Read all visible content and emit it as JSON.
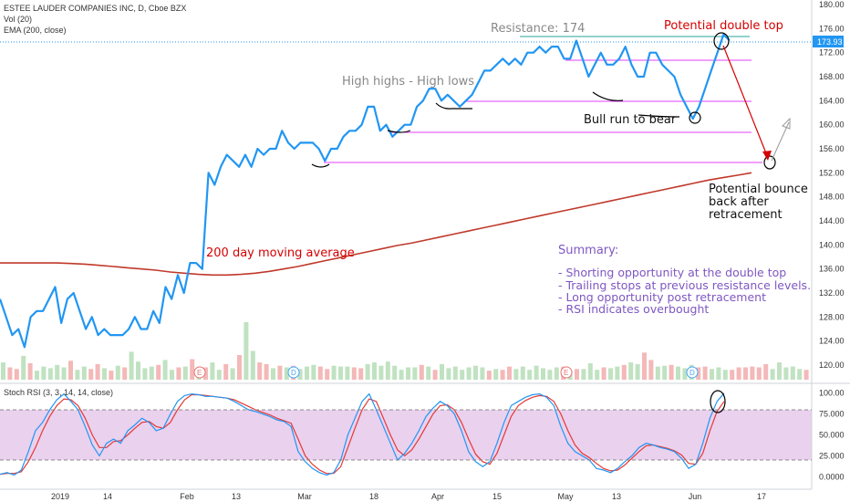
{
  "legend": {
    "symbol_line": "ESTEE LAUDER COMPANIES INC, D, Cboe BZX",
    "vol_line": "Vol (20)",
    "ema_line": "EMA (200, close)",
    "stoch_line": "Stoch RSI (3, 3, 14, 14, close)"
  },
  "price_badge": "173.93",
  "colors": {
    "price": "#2196f3",
    "ema": "#c0392b",
    "stoch_k": "#2196f3",
    "stoch_d": "#e53935",
    "support_lines": "#e040fb",
    "rsi_band": "#e1bee7",
    "annotation_purple": "#7e57c2",
    "annotation_red": "#d50000",
    "annotation_gray": "#888888"
  },
  "annotations": {
    "resistance": "Resistance: 174",
    "double_top": "Potential double top",
    "high_highs": "High highs - High lows",
    "bull_run": "Bull run to bear",
    "bounce_1": "Potential bounce",
    "bounce_2": "back after",
    "bounce_3": "retracement",
    "ma200": "200 day moving average",
    "summary_title": "Summary:",
    "summary_1": "- Shorting opportunity at the double top",
    "summary_2": "- Trailing stops at previous resistance levels.",
    "summary_3": "- Long opportunity post retracement",
    "summary_4": "- RSI indicates overbought"
  },
  "chart_data": [
    {
      "type": "line",
      "title": "ESTEE LAUDER COMPANIES INC, D, Cboe BZX",
      "ylim": [
        116,
        181
      ],
      "y_ticks": [
        "120.00",
        "124.00",
        "128.00",
        "132.00",
        "136.00",
        "140.00",
        "144.00",
        "148.00",
        "152.00",
        "156.00",
        "160.00",
        "164.00",
        "168.00",
        "172.00",
        "176.00",
        "180.00"
      ],
      "x_tick_labels": [
        "2019",
        "14",
        "Feb",
        "13",
        "Mar",
        "18",
        "Apr",
        "15",
        "May",
        "13",
        "Jun",
        "17"
      ],
      "series": [
        {
          "name": "Price",
          "values": [
            131,
            128,
            125,
            126,
            123,
            128,
            129,
            129,
            131,
            133,
            127,
            131,
            132,
            129,
            126,
            128,
            125,
            126,
            125,
            125,
            125,
            126,
            128,
            126,
            126,
            129,
            127,
            133,
            131,
            135,
            132,
            137,
            137,
            136,
            152,
            150,
            153,
            155,
            154,
            153,
            155,
            153,
            156,
            155,
            156,
            156,
            159,
            157,
            156,
            157,
            157,
            157,
            156,
            154,
            156,
            156,
            158,
            159,
            159,
            160,
            163,
            163,
            159,
            160,
            158,
            159,
            160,
            160,
            163,
            164,
            166,
            166,
            164,
            165,
            164,
            163,
            164,
            165,
            167,
            169,
            169,
            170,
            171,
            170,
            171,
            170,
            172,
            172,
            173,
            172,
            173,
            173,
            171,
            171,
            174,
            171,
            168,
            170,
            172,
            170,
            170,
            171,
            173,
            170,
            168,
            168,
            172,
            172,
            170,
            169,
            168,
            165,
            163,
            161,
            163,
            166,
            169,
            172,
            175,
            174
          ]
        },
        {
          "name": "EMA (200, close)",
          "values": [
            137,
            137,
            137,
            137,
            137,
            136.9,
            136.8,
            136.6,
            136.4,
            136.2,
            136,
            135.8,
            135.5,
            135.3,
            135.1,
            135,
            135,
            135.1,
            135.3,
            135.6,
            136,
            136.4,
            136.9,
            137.4,
            137.9,
            138.4,
            138.9,
            139.4,
            139.9,
            140.3,
            140.8,
            141.3,
            141.8,
            142.3,
            142.8,
            143.3,
            143.8,
            144.3,
            144.8,
            145.3,
            145.8,
            146.3,
            146.8,
            147.3,
            147.8,
            148.3,
            148.8,
            149.3,
            149.8,
            150.3,
            150.8,
            151.2,
            151.6,
            152
          ]
        },
        {
          "name": "Volume",
          "values": [
            2.1,
            1.5,
            1.3,
            2.9,
            2,
            1.1,
            1.6,
            1.4,
            1.8,
            1.5,
            2.3,
            1.2,
            1.6,
            1.3,
            1.9,
            1.4,
            1.1,
            1.7,
            1.5,
            3.4,
            2.2,
            1.4,
            1.6,
            1.8,
            2.4,
            1.2,
            1.5,
            1.6,
            2.5,
            1.6,
            1.5,
            2.1,
            1.2,
            1.9,
            1.4,
            3,
            7,
            3.5,
            2.1,
            1.9,
            1.4,
            1.7,
            1.5,
            1.7,
            1.3,
            1.6,
            1.8,
            1.6,
            1.3,
            1.7,
            1.6,
            1.6,
            1.5,
            1.4,
            1.9,
            2.1,
            1.7,
            2.2,
            1.7,
            1.2,
            1.5,
            1.5,
            1.8,
            1.6,
            1.2,
            1.9,
            1.4,
            1.6,
            1.2,
            1.5,
            1.7,
            1.5,
            1.1,
            1.3,
            1.2,
            1.6,
            1.3,
            1.6,
            1.2,
            1.7,
            1.4,
            1.2,
            1.5,
            1.6,
            1.1,
            1.3,
            1.3,
            2,
            1.2,
            1.5,
            1.4,
            1.6,
            1.8,
            2.1,
            1.9,
            3.3,
            2.4,
            1.6,
            1.7,
            1.8,
            1.6,
            1.4,
            1.8,
            1.5,
            1.6,
            1.3,
            1.5,
            1.2,
            1.2,
            1.5,
            1.5,
            1.6,
            1.5,
            1.9,
            1.3,
            2.1,
            1.5,
            1.6,
            1.3,
            1.2
          ]
        }
      ]
    },
    {
      "type": "line",
      "title": "Stoch RSI (3, 3, 14, 14, close)",
      "ylim": [
        -8,
        108
      ],
      "y_ticks": [
        "100.00",
        "75.000",
        "50.000",
        "25.000",
        "0.0000"
      ],
      "series": [
        {
          "name": "K",
          "values": [
            3,
            5,
            2,
            8,
            30,
            55,
            65,
            80,
            92,
            99,
            90,
            80,
            60,
            38,
            25,
            40,
            45,
            40,
            55,
            62,
            70,
            65,
            55,
            58,
            75,
            90,
            97,
            99,
            98,
            96,
            96,
            95,
            94,
            90,
            85,
            80,
            78,
            75,
            72,
            68,
            66,
            60,
            30,
            18,
            10,
            5,
            2,
            5,
            20,
            50,
            70,
            90,
            99,
            80,
            60,
            40,
            20,
            28,
            40,
            55,
            72,
            82,
            90,
            85,
            75,
            55,
            30,
            18,
            12,
            18,
            40,
            65,
            85,
            90,
            95,
            98,
            99,
            95,
            85,
            60,
            40,
            30,
            25,
            20,
            10,
            8,
            5,
            10,
            18,
            25,
            35,
            40,
            38,
            35,
            33,
            30,
            22,
            10,
            15,
            40,
            70,
            90,
            100
          ]
        },
        {
          "name": "D",
          "values": [
            3,
            4,
            4,
            6,
            18,
            35,
            55,
            72,
            85,
            93,
            92,
            85,
            70,
            50,
            35,
            35,
            42,
            43,
            50,
            58,
            65,
            66,
            60,
            58,
            65,
            80,
            92,
            98,
            98,
            97,
            96,
            95,
            94,
            92,
            88,
            84,
            80,
            77,
            74,
            70,
            67,
            64,
            45,
            25,
            15,
            8,
            4,
            4,
            12,
            35,
            58,
            80,
            93,
            90,
            70,
            50,
            32,
            25,
            32,
            45,
            60,
            75,
            85,
            86,
            80,
            65,
            45,
            27,
            18,
            15,
            28,
            50,
            72,
            85,
            91,
            95,
            97,
            96,
            90,
            75,
            55,
            38,
            28,
            23,
            16,
            10,
            7,
            8,
            14,
            22,
            30,
            37,
            38,
            36,
            34,
            31,
            26,
            16,
            15,
            28,
            55,
            78,
            90
          ]
        }
      ]
    }
  ]
}
